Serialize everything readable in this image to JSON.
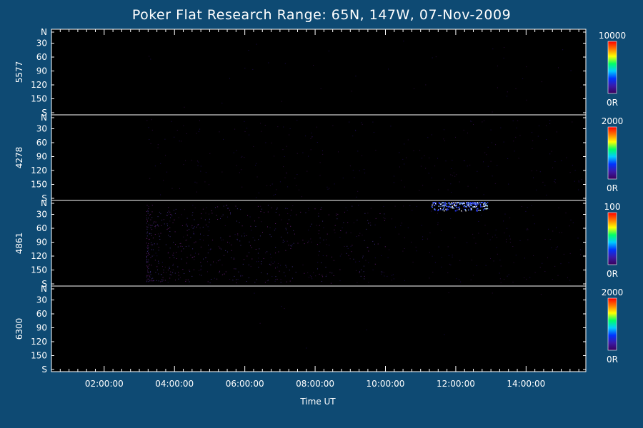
{
  "title": "Poker Flat Research Range: 65N, 147W, 07-Nov-2009",
  "chart_data": {
    "type": "heatmap",
    "xlabel": "Time UT",
    "x_tick_labels": [
      "02:00:00",
      "04:00:00",
      "06:00:00",
      "08:00:00",
      "10:00:00",
      "12:00:00",
      "14:00:00"
    ],
    "x_tick_hours": [
      2,
      4,
      6,
      8,
      10,
      12,
      14
    ],
    "xlim_hours": [
      0.5,
      15.7
    ],
    "data_start_hour": 3.2,
    "data_end_hour": 15.6,
    "y_tick_labels": [
      "N",
      "30",
      "60",
      "90",
      "120",
      "150",
      "S"
    ],
    "panels": [
      {
        "name": "5577",
        "scale_max": "10000",
        "scale_min": "0R",
        "activity": []
      },
      {
        "name": "4278",
        "scale_max": "2000",
        "scale_min": "0R",
        "activity": []
      },
      {
        "name": "4861",
        "scale_max": "100",
        "scale_min": "0R",
        "activity": [
          {
            "start_hour": 11.3,
            "end_hour": 12.9,
            "angle_from_deg": 0,
            "angle_to_deg": 18,
            "level": "medium"
          }
        ]
      },
      {
        "name": "6300",
        "scale_max": "2000",
        "scale_min": "0R",
        "activity": []
      }
    ],
    "colormap": [
      "#3a005a",
      "#3a1aa8",
      "#0033ff",
      "#00ccff",
      "#00ff66",
      "#ffff00",
      "#ff7700",
      "#ff0000"
    ]
  }
}
